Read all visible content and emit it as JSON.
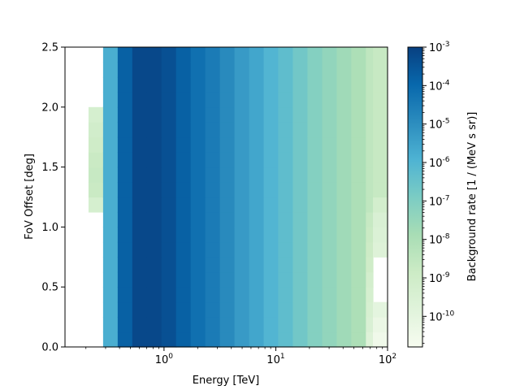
{
  "chart_data": {
    "type": "heatmap",
    "xlabel": "Energy [TeV]",
    "ylabel": "FoV Offset [deg]",
    "colorbar_label": "Background rate [1 / (MeV s sr)]",
    "x_scale": "log",
    "xlim": [
      0.13,
      100
    ],
    "ylim": [
      0,
      2.5
    ],
    "x_ticks": [
      {
        "value": 1,
        "label": "10^0"
      },
      {
        "value": 10,
        "label": "10^1"
      },
      {
        "value": 100,
        "label": "10^2"
      }
    ],
    "y_ticks": [
      {
        "value": 0.0,
        "label": "0.0"
      },
      {
        "value": 0.5,
        "label": "0.5"
      },
      {
        "value": 1.0,
        "label": "1.0"
      },
      {
        "value": 1.5,
        "label": "1.5"
      },
      {
        "value": 2.0,
        "label": "2.0"
      },
      {
        "value": 2.5,
        "label": "2.5"
      }
    ],
    "colorbar_scale": "log",
    "colorbar_range": [
      1.6e-11,
      0.001
    ],
    "colorbar_ticks": [
      {
        "exp": -3,
        "label": "10^-3"
      },
      {
        "exp": -4,
        "label": "10^-4"
      },
      {
        "exp": -5,
        "label": "10^-5"
      },
      {
        "exp": -6,
        "label": "10^-6"
      },
      {
        "exp": -7,
        "label": "10^-7"
      },
      {
        "exp": -8,
        "label": "10^-8"
      },
      {
        "exp": -9,
        "label": "10^-9"
      },
      {
        "exp": -10,
        "label": "10^-10"
      }
    ],
    "colormap": "GnBu",
    "colormap_stops": [
      "#f7fcf0",
      "#e0f3db",
      "#ccebc5",
      "#a8ddb5",
      "#7bccc4",
      "#4eb3d3",
      "#2b8cbe",
      "#0868ac",
      "#084081"
    ],
    "energy_bin_edges": [
      0.211,
      0.285,
      0.385,
      0.52,
      0.702,
      0.949,
      1.28,
      1.73,
      2.34,
      3.16,
      4.27,
      5.77,
      7.79,
      10.5,
      14.2,
      19.2,
      26.0,
      35.1,
      47.4,
      64.0,
      74.0,
      100
    ],
    "offset_bin_edges": [
      0,
      0.125,
      0.25,
      0.375,
      0.5,
      0.625,
      0.75,
      0.875,
      1.0,
      1.125,
      1.25,
      1.375,
      1.5,
      1.625,
      1.75,
      1.875,
      2.0,
      2.125,
      2.25,
      2.375,
      2.5
    ],
    "log10_rate_by_energy_bin": [
      -8.8,
      -5.8,
      -3.8,
      -3.2,
      -3.2,
      -3.4,
      -3.8,
      -4.2,
      -4.5,
      -4.9,
      -5.3,
      -5.6,
      -6.0,
      -6.3,
      -6.7,
      -7.1,
      -7.4,
      -7.7,
      -8.0,
      -8.5,
      -8.7
    ],
    "empty_cells": [
      {
        "energy_bin": 0,
        "offset_bins": [
          0,
          1,
          2,
          3,
          4,
          5,
          6,
          7,
          8,
          16,
          17,
          18,
          19
        ]
      },
      {
        "energy_bin": 20,
        "offset_bins": [
          3,
          4,
          5
        ]
      }
    ],
    "offset_modifiers_log10": {
      "0": {
        "8": -0.9,
        "9": -0.5,
        "10": 0.0,
        "11": 0.1,
        "12": 0.0,
        "13": -0.2,
        "14": -0.3,
        "15": -0.5
      },
      "19": {
        "0": -1.2,
        "1": -1.0,
        "2": -0.9,
        "3": -0.8,
        "4": -0.7,
        "5": -0.5,
        "6": -0.4,
        "7": -0.3,
        "8": -0.2
      },
      "20": {
        "0": -1.8,
        "1": -1.6,
        "2": -1.3,
        "6": -1.0,
        "7": -0.9,
        "8": -0.8,
        "9": -0.5
      }
    }
  }
}
